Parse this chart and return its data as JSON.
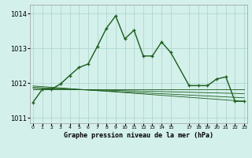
{
  "title": "Graphe pression niveau de la mer (hPa)",
  "bg_color": "#d4f0eb",
  "line_color": "#1a5c1a",
  "grid_color": "#b0d8d0",
  "ylim": [
    1010.85,
    1014.25
  ],
  "yticks": [
    1011,
    1012,
    1013,
    1014
  ],
  "xlim": [
    -0.3,
    23.3
  ],
  "x_tick_positions": [
    0,
    1,
    2,
    3,
    4,
    5,
    6,
    7,
    8,
    9,
    10,
    11,
    12,
    13,
    14,
    15,
    17,
    18,
    19,
    20,
    21,
    22,
    23
  ],
  "x_tick_labels": [
    "0",
    "1",
    "2",
    "3",
    "4",
    "5",
    "6",
    "7",
    "8",
    "9",
    "10",
    "11",
    "12",
    "13",
    "14",
    "15",
    "17",
    "18",
    "19",
    "20",
    "21",
    "22",
    "23"
  ],
  "main_curve": {
    "x": [
      0,
      1,
      2,
      3,
      4,
      5,
      6,
      7,
      8,
      9,
      10,
      11,
      12,
      13,
      14,
      15,
      17,
      18,
      19,
      20,
      21,
      22,
      23
    ],
    "y": [
      1011.45,
      1011.82,
      1011.82,
      1011.98,
      1012.22,
      1012.45,
      1012.55,
      1013.05,
      1013.58,
      1013.93,
      1013.27,
      1013.52,
      1012.78,
      1012.78,
      1013.18,
      1012.88,
      1011.93,
      1011.93,
      1011.93,
      1012.12,
      1012.18,
      1011.48,
      1011.48
    ]
  },
  "flat_line1": {
    "x": [
      0,
      23
    ],
    "y": [
      1011.82,
      1011.82
    ]
  },
  "flat_line2": {
    "x": [
      0,
      23
    ],
    "y": [
      1011.85,
      1011.7
    ]
  },
  "flat_line3": {
    "x": [
      0,
      23
    ],
    "y": [
      1011.88,
      1011.58
    ]
  },
  "flat_line4": {
    "x": [
      0,
      23
    ],
    "y": [
      1011.92,
      1011.48
    ]
  }
}
